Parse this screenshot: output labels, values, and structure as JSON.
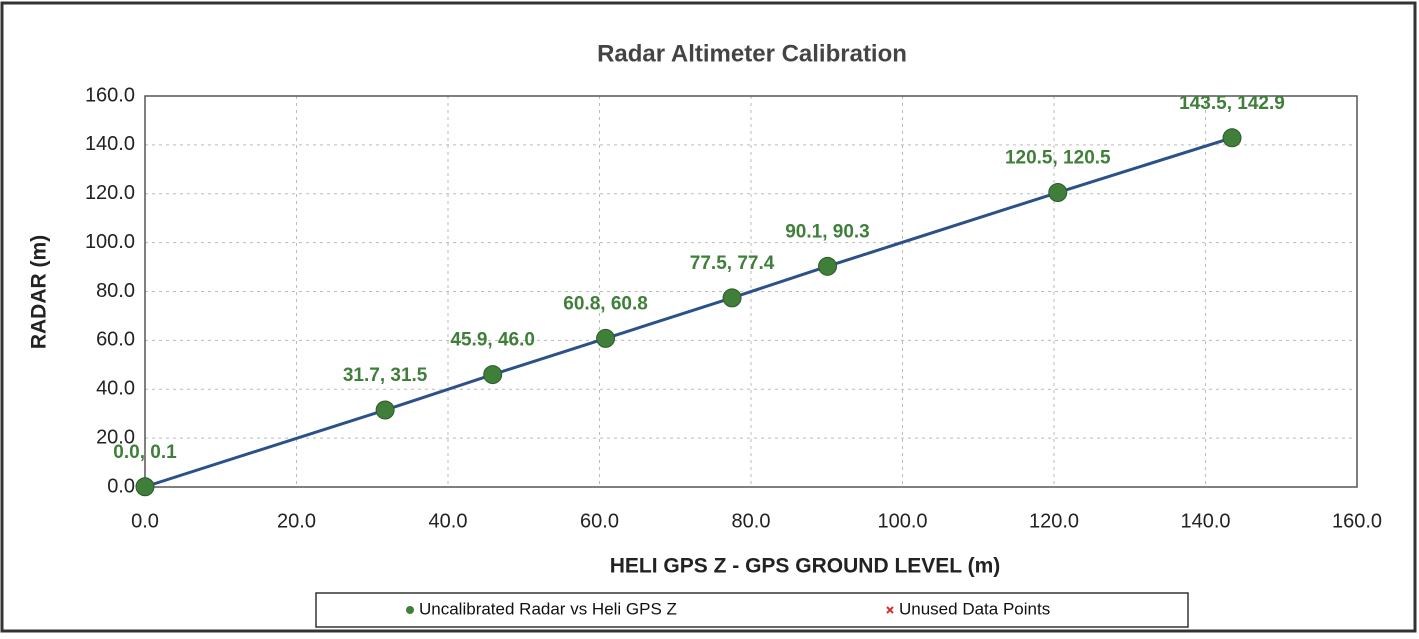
{
  "chart_data": {
    "type": "scatter",
    "title": "Radar Altimeter Calibration",
    "xlabel": "HELI GPS Z - GPS GROUND LEVEL (m)",
    "ylabel": "RADAR (m)",
    "xlim": [
      0,
      160
    ],
    "ylim": [
      0,
      160
    ],
    "xticks": [
      {
        "value": 0,
        "label": "0.0"
      },
      {
        "value": 20,
        "label": "20.0"
      },
      {
        "value": 40,
        "label": "40.0"
      },
      {
        "value": 60,
        "label": "60.0"
      },
      {
        "value": 80,
        "label": "80.0"
      },
      {
        "value": 100,
        "label": "100.0"
      },
      {
        "value": 120,
        "label": "120.0"
      },
      {
        "value": 140,
        "label": "140.0"
      },
      {
        "value": 160,
        "label": "160.0"
      }
    ],
    "yticks": [
      {
        "value": 0,
        "label": "0.0"
      },
      {
        "value": 20,
        "label": "20.0"
      },
      {
        "value": 40,
        "label": "40.0"
      },
      {
        "value": 60,
        "label": "60.0"
      },
      {
        "value": 80,
        "label": "80.0"
      },
      {
        "value": 100,
        "label": "100.0"
      },
      {
        "value": 120,
        "label": "120.0"
      },
      {
        "value": 140,
        "label": "140.0"
      },
      {
        "value": 160,
        "label": "160.0"
      }
    ],
    "grid": true,
    "legend": "bottom",
    "line_color": "#2b5189",
    "series": [
      {
        "name": "Uncalibrated Radar vs Heli GPS Z",
        "color": "#3f7f3a",
        "marker": "circle",
        "x": [
          0.0,
          31.7,
          45.9,
          60.8,
          77.5,
          90.1,
          120.5,
          143.5
        ],
        "values": [
          0.1,
          31.5,
          46.0,
          60.8,
          77.4,
          90.3,
          120.5,
          142.9
        ],
        "value_labels": [
          "0.0, 0.1",
          "31.7, 31.5",
          "45.9, 46.0",
          "60.8, 60.8",
          "77.5, 77.4",
          "90.1, 90.3",
          "120.5, 120.5",
          "143.5, 142.9"
        ]
      },
      {
        "name": "Unused Data Points",
        "color": "#d03030",
        "marker": "x",
        "x": [],
        "values": []
      }
    ]
  }
}
